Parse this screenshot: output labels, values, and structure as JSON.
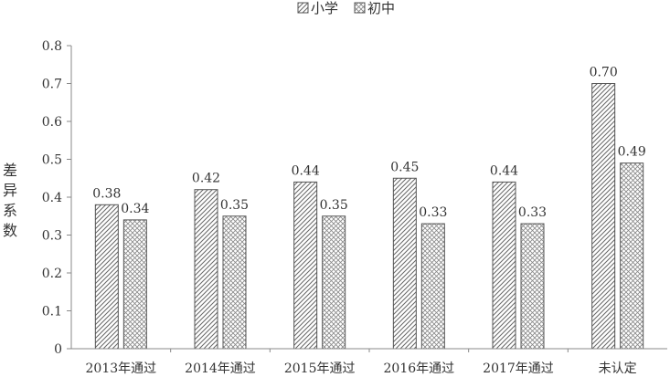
{
  "chart_data": {
    "type": "bar",
    "title": "",
    "xlabel": "",
    "ylabel": "差异系数",
    "ylim": [
      0,
      0.8
    ],
    "yticks": [
      "0",
      "0.1",
      "0.2",
      "0.3",
      "0.4",
      "0.5",
      "0.6",
      "0.7",
      "0.8"
    ],
    "grid": false,
    "legend_position": "top",
    "categories": [
      "2013年通过",
      "2014年通过",
      "2015年通过",
      "2016年通过",
      "2017年通过",
      "未认定"
    ],
    "series": [
      {
        "name": "小学",
        "values": [
          0.38,
          0.42,
          0.44,
          0.45,
          0.44,
          0.7
        ],
        "labels": [
          "0.38",
          "0.42",
          "0.44",
          "0.45",
          "0.44",
          "0.70"
        ],
        "pattern": "diagonal-hatch"
      },
      {
        "name": "初中",
        "values": [
          0.34,
          0.35,
          0.35,
          0.33,
          0.33,
          0.49
        ],
        "labels": [
          "0.34",
          "0.35",
          "0.35",
          "0.33",
          "0.33",
          "0.49"
        ],
        "pattern": "cross-hatch"
      }
    ],
    "colors": {
      "stroke": "#555555",
      "axis": "#888888",
      "text": "#333333"
    }
  }
}
